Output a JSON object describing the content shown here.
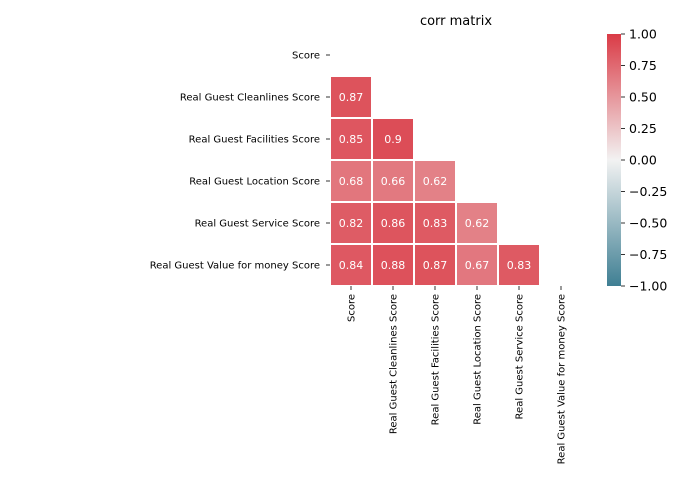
{
  "chart_data": {
    "type": "heatmap",
    "title": "corr matrix",
    "xlabel": "",
    "ylabel": "",
    "labels": [
      "Score",
      "Real Guest Cleanlines Score",
      "Real Guest Facilities Score",
      "Real Guest Location Score",
      "Real Guest Service Score",
      "Real Guest Value for money Score"
    ],
    "mask": "upper-triangle-including-diagonal",
    "cells": [
      {
        "row": 1,
        "col": 0,
        "value": 0.87,
        "label": "0.87"
      },
      {
        "row": 2,
        "col": 0,
        "value": 0.85,
        "label": "0.85"
      },
      {
        "row": 2,
        "col": 1,
        "value": 0.9,
        "label": "0.9"
      },
      {
        "row": 3,
        "col": 0,
        "value": 0.68,
        "label": "0.68"
      },
      {
        "row": 3,
        "col": 1,
        "value": 0.66,
        "label": "0.66"
      },
      {
        "row": 3,
        "col": 2,
        "value": 0.62,
        "label": "0.62"
      },
      {
        "row": 4,
        "col": 0,
        "value": 0.82,
        "label": "0.82"
      },
      {
        "row": 4,
        "col": 1,
        "value": 0.86,
        "label": "0.86"
      },
      {
        "row": 4,
        "col": 2,
        "value": 0.83,
        "label": "0.83"
      },
      {
        "row": 4,
        "col": 3,
        "value": 0.62,
        "label": "0.62"
      },
      {
        "row": 5,
        "col": 0,
        "value": 0.84,
        "label": "0.84"
      },
      {
        "row": 5,
        "col": 1,
        "value": 0.88,
        "label": "0.88"
      },
      {
        "row": 5,
        "col": 2,
        "value": 0.87,
        "label": "0.87"
      },
      {
        "row": 5,
        "col": 3,
        "value": 0.67,
        "label": "0.67"
      },
      {
        "row": 5,
        "col": 4,
        "value": 0.83,
        "label": "0.83"
      }
    ],
    "colorbar": {
      "range": [
        -1,
        1
      ],
      "ticks": [
        "1.00",
        "0.75",
        "0.50",
        "0.25",
        "0.00",
        "−0.25",
        "−0.50",
        "−0.75",
        "−1.00"
      ],
      "colormap": {
        "low": "#3f7f93",
        "mid": "#f2f2f2",
        "high": "#da3b46"
      }
    },
    "legend": "colorbar-right",
    "grid": false
  }
}
